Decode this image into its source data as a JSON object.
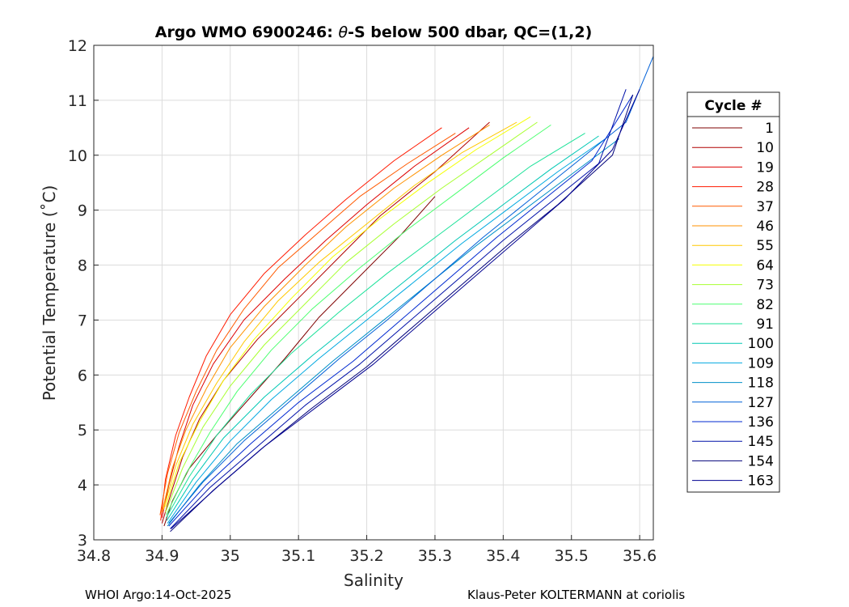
{
  "chart_data": {
    "type": "line",
    "title_prefix": "Argo WMO 6900246: ",
    "title_theta": "θ",
    "title_suffix": "-S below 500 dbar,  QC=(1,2)",
    "xlabel": "Salinity",
    "ylabel": "Potential Temperature (˚C)",
    "xlim": [
      34.8,
      35.62
    ],
    "ylim": [
      3,
      12
    ],
    "xticks": [
      34.8,
      34.9,
      35.0,
      35.1,
      35.2,
      35.3,
      35.4,
      35.5,
      35.6
    ],
    "xtick_labels": [
      "34.8",
      "34.9",
      "35",
      "35.1",
      "35.2",
      "35.3",
      "35.4",
      "35.5",
      "35.6"
    ],
    "yticks": [
      3,
      4,
      5,
      6,
      7,
      8,
      9,
      10,
      11,
      12
    ],
    "ytick_labels": [
      "3",
      "4",
      "5",
      "6",
      "7",
      "8",
      "9",
      "10",
      "11",
      "12"
    ],
    "grid": true,
    "legend_title": "Cycle #",
    "legend_position": "right-outside",
    "series": [
      {
        "name": "1",
        "color": "#7f0000",
        "values": [
          [
            34.903,
            3.25
          ],
          [
            34.915,
            3.7
          ],
          [
            34.94,
            4.3
          ],
          [
            34.98,
            4.9
          ],
          [
            35.03,
            5.6
          ],
          [
            35.08,
            6.3
          ],
          [
            35.13,
            7.05
          ],
          [
            35.19,
            7.8
          ],
          [
            35.25,
            8.55
          ],
          [
            35.3,
            9.25
          ]
        ]
      },
      {
        "name": "10",
        "color": "#b00000",
        "values": [
          [
            34.9,
            3.3
          ],
          [
            34.912,
            3.8
          ],
          [
            34.93,
            4.5
          ],
          [
            34.955,
            5.2
          ],
          [
            34.99,
            5.9
          ],
          [
            35.04,
            6.65
          ],
          [
            35.1,
            7.4
          ],
          [
            35.16,
            8.15
          ],
          [
            35.22,
            8.9
          ],
          [
            35.3,
            9.7
          ],
          [
            35.38,
            10.6
          ]
        ]
      },
      {
        "name": "19",
        "color": "#dd0000",
        "values": [
          [
            34.9,
            3.4
          ],
          [
            34.91,
            4.0
          ],
          [
            34.925,
            4.7
          ],
          [
            34.945,
            5.45
          ],
          [
            34.975,
            6.2
          ],
          [
            35.02,
            7.0
          ],
          [
            35.08,
            7.75
          ],
          [
            35.14,
            8.45
          ],
          [
            35.2,
            9.1
          ],
          [
            35.27,
            9.8
          ],
          [
            35.35,
            10.5
          ]
        ]
      },
      {
        "name": "28",
        "color": "#ff1a00",
        "values": [
          [
            34.898,
            3.35
          ],
          [
            34.905,
            4.1
          ],
          [
            34.92,
            4.9
          ],
          [
            34.94,
            5.6
          ],
          [
            34.965,
            6.35
          ],
          [
            35.0,
            7.1
          ],
          [
            35.05,
            7.85
          ],
          [
            35.11,
            8.55
          ],
          [
            35.17,
            9.2
          ],
          [
            35.24,
            9.9
          ],
          [
            35.31,
            10.5
          ]
        ]
      },
      {
        "name": "37",
        "color": "#ff5a00",
        "values": [
          [
            34.897,
            3.45
          ],
          [
            34.908,
            4.2
          ],
          [
            34.925,
            4.95
          ],
          [
            34.95,
            5.7
          ],
          [
            34.98,
            6.45
          ],
          [
            35.02,
            7.2
          ],
          [
            35.07,
            7.95
          ],
          [
            35.13,
            8.6
          ],
          [
            35.19,
            9.25
          ],
          [
            35.26,
            9.85
          ],
          [
            35.33,
            10.4
          ]
        ]
      },
      {
        "name": "46",
        "color": "#ff9200",
        "values": [
          [
            34.9,
            3.5
          ],
          [
            34.915,
            4.3
          ],
          [
            34.935,
            5.0
          ],
          [
            34.965,
            5.75
          ],
          [
            35.0,
            6.5
          ],
          [
            35.05,
            7.25
          ],
          [
            35.11,
            8.0
          ],
          [
            35.17,
            8.7
          ],
          [
            35.24,
            9.4
          ],
          [
            35.31,
            10.0
          ],
          [
            35.38,
            10.55
          ]
        ]
      },
      {
        "name": "55",
        "color": "#ffc800",
        "values": [
          [
            34.902,
            3.55
          ],
          [
            34.92,
            4.35
          ],
          [
            34.945,
            5.1
          ],
          [
            34.98,
            5.85
          ],
          [
            35.02,
            6.6
          ],
          [
            35.07,
            7.35
          ],
          [
            35.13,
            8.05
          ],
          [
            35.2,
            8.75
          ],
          [
            35.27,
            9.45
          ],
          [
            35.34,
            10.05
          ],
          [
            35.42,
            10.6
          ]
        ]
      },
      {
        "name": "64",
        "color": "#f5ff00",
        "values": [
          [
            34.905,
            3.6
          ],
          [
            34.925,
            4.4
          ],
          [
            34.955,
            5.15
          ],
          [
            34.99,
            5.9
          ],
          [
            35.035,
            6.65
          ],
          [
            35.09,
            7.4
          ],
          [
            35.15,
            8.15
          ],
          [
            35.22,
            8.85
          ],
          [
            35.29,
            9.5
          ],
          [
            35.36,
            10.1
          ],
          [
            35.44,
            10.7
          ]
        ]
      },
      {
        "name": "73",
        "color": "#a8ff30",
        "values": [
          [
            34.905,
            3.5
          ],
          [
            34.93,
            4.3
          ],
          [
            34.96,
            5.05
          ],
          [
            35.0,
            5.8
          ],
          [
            35.05,
            6.55
          ],
          [
            35.11,
            7.3
          ],
          [
            35.17,
            8.05
          ],
          [
            35.24,
            8.75
          ],
          [
            35.31,
            9.4
          ],
          [
            35.38,
            10.0
          ],
          [
            35.45,
            10.6
          ]
        ]
      },
      {
        "name": "82",
        "color": "#4cff70",
        "values": [
          [
            34.906,
            3.45
          ],
          [
            34.935,
            4.2
          ],
          [
            34.97,
            4.95
          ],
          [
            35.01,
            5.7
          ],
          [
            35.06,
            6.45
          ],
          [
            35.12,
            7.2
          ],
          [
            35.19,
            7.95
          ],
          [
            35.26,
            8.65
          ],
          [
            35.33,
            9.3
          ],
          [
            35.4,
            9.95
          ],
          [
            35.47,
            10.55
          ]
        ]
      },
      {
        "name": "91",
        "color": "#1ee29a",
        "values": [
          [
            34.906,
            3.4
          ],
          [
            34.94,
            4.15
          ],
          [
            34.98,
            4.9
          ],
          [
            35.03,
            5.65
          ],
          [
            35.09,
            6.4
          ],
          [
            35.16,
            7.15
          ],
          [
            35.23,
            7.85
          ],
          [
            35.3,
            8.5
          ],
          [
            35.37,
            9.15
          ],
          [
            35.44,
            9.8
          ],
          [
            35.52,
            10.4
          ]
        ]
      },
      {
        "name": "100",
        "color": "#00c8b4",
        "values": [
          [
            34.907,
            3.35
          ],
          [
            34.945,
            4.1
          ],
          [
            34.99,
            4.85
          ],
          [
            35.05,
            5.6
          ],
          [
            35.12,
            6.35
          ],
          [
            35.19,
            7.05
          ],
          [
            35.26,
            7.75
          ],
          [
            35.33,
            8.45
          ],
          [
            35.4,
            9.1
          ],
          [
            35.47,
            9.75
          ],
          [
            35.54,
            10.35
          ]
        ]
      },
      {
        "name": "109",
        "color": "#00a8e0",
        "values": [
          [
            34.908,
            3.3
          ],
          [
            34.95,
            4.05
          ],
          [
            35.0,
            4.8
          ],
          [
            35.06,
            5.55
          ],
          [
            35.13,
            6.3
          ],
          [
            35.2,
            7.0
          ],
          [
            35.27,
            7.7
          ],
          [
            35.34,
            8.4
          ],
          [
            35.41,
            9.05
          ],
          [
            35.48,
            9.7
          ],
          [
            35.55,
            10.3
          ]
        ]
      },
      {
        "name": "118",
        "color": "#0090c8",
        "values": [
          [
            34.908,
            3.25
          ],
          [
            34.955,
            4.0
          ],
          [
            35.01,
            4.75
          ],
          [
            35.08,
            5.5
          ],
          [
            35.15,
            6.25
          ],
          [
            35.22,
            6.95
          ],
          [
            35.29,
            7.65
          ],
          [
            35.36,
            8.35
          ],
          [
            35.43,
            9.0
          ],
          [
            35.5,
            9.65
          ],
          [
            35.57,
            10.3
          ]
        ]
      },
      {
        "name": "127",
        "color": "#0060d8",
        "values": [
          [
            34.91,
            3.3
          ],
          [
            34.96,
            4.05
          ],
          [
            35.02,
            4.8
          ],
          [
            35.09,
            5.55
          ],
          [
            35.16,
            6.3
          ],
          [
            35.23,
            7.0
          ],
          [
            35.3,
            7.75
          ],
          [
            35.37,
            8.5
          ],
          [
            35.44,
            9.2
          ],
          [
            35.51,
            9.9
          ],
          [
            35.58,
            10.6
          ],
          [
            35.62,
            11.8
          ]
        ]
      },
      {
        "name": "136",
        "color": "#0028d0",
        "values": [
          [
            34.91,
            3.25
          ],
          [
            34.965,
            4.0
          ],
          [
            35.03,
            4.75
          ],
          [
            35.1,
            5.5
          ],
          [
            35.18,
            6.25
          ],
          [
            35.25,
            7.0
          ],
          [
            35.32,
            7.75
          ],
          [
            35.39,
            8.5
          ],
          [
            35.46,
            9.2
          ],
          [
            35.53,
            9.9
          ],
          [
            35.59,
            11.1
          ]
        ]
      },
      {
        "name": "145",
        "color": "#0010a8",
        "values": [
          [
            34.912,
            3.2
          ],
          [
            34.97,
            3.95
          ],
          [
            35.04,
            4.7
          ],
          [
            35.11,
            5.45
          ],
          [
            35.19,
            6.2
          ],
          [
            35.26,
            6.95
          ],
          [
            35.33,
            7.7
          ],
          [
            35.4,
            8.45
          ],
          [
            35.47,
            9.15
          ],
          [
            35.54,
            9.85
          ],
          [
            35.58,
            11.2
          ]
        ]
      },
      {
        "name": "154",
        "color": "#00007a",
        "values": [
          [
            34.912,
            3.15
          ],
          [
            34.975,
            3.9
          ],
          [
            35.045,
            4.65
          ],
          [
            35.12,
            5.4
          ],
          [
            35.2,
            6.15
          ],
          [
            35.27,
            6.9
          ],
          [
            35.34,
            7.65
          ],
          [
            35.41,
            8.4
          ],
          [
            35.48,
            9.1
          ],
          [
            35.56,
            10.0
          ],
          [
            35.59,
            11.1
          ]
        ]
      },
      {
        "name": "163",
        "color": "#000090",
        "values": [
          [
            34.913,
            3.2
          ],
          [
            34.98,
            3.95
          ],
          [
            35.05,
            4.7
          ],
          [
            35.13,
            5.45
          ],
          [
            35.21,
            6.2
          ],
          [
            35.28,
            6.95
          ],
          [
            35.35,
            7.7
          ],
          [
            35.42,
            8.45
          ],
          [
            35.49,
            9.2
          ],
          [
            35.56,
            10.1
          ],
          [
            35.6,
            11.2
          ]
        ]
      }
    ]
  },
  "footer": {
    "left": "WHOI Argo:14-Oct-2025",
    "right": "Klaus-Peter KOLTERMANN at coriolis"
  }
}
